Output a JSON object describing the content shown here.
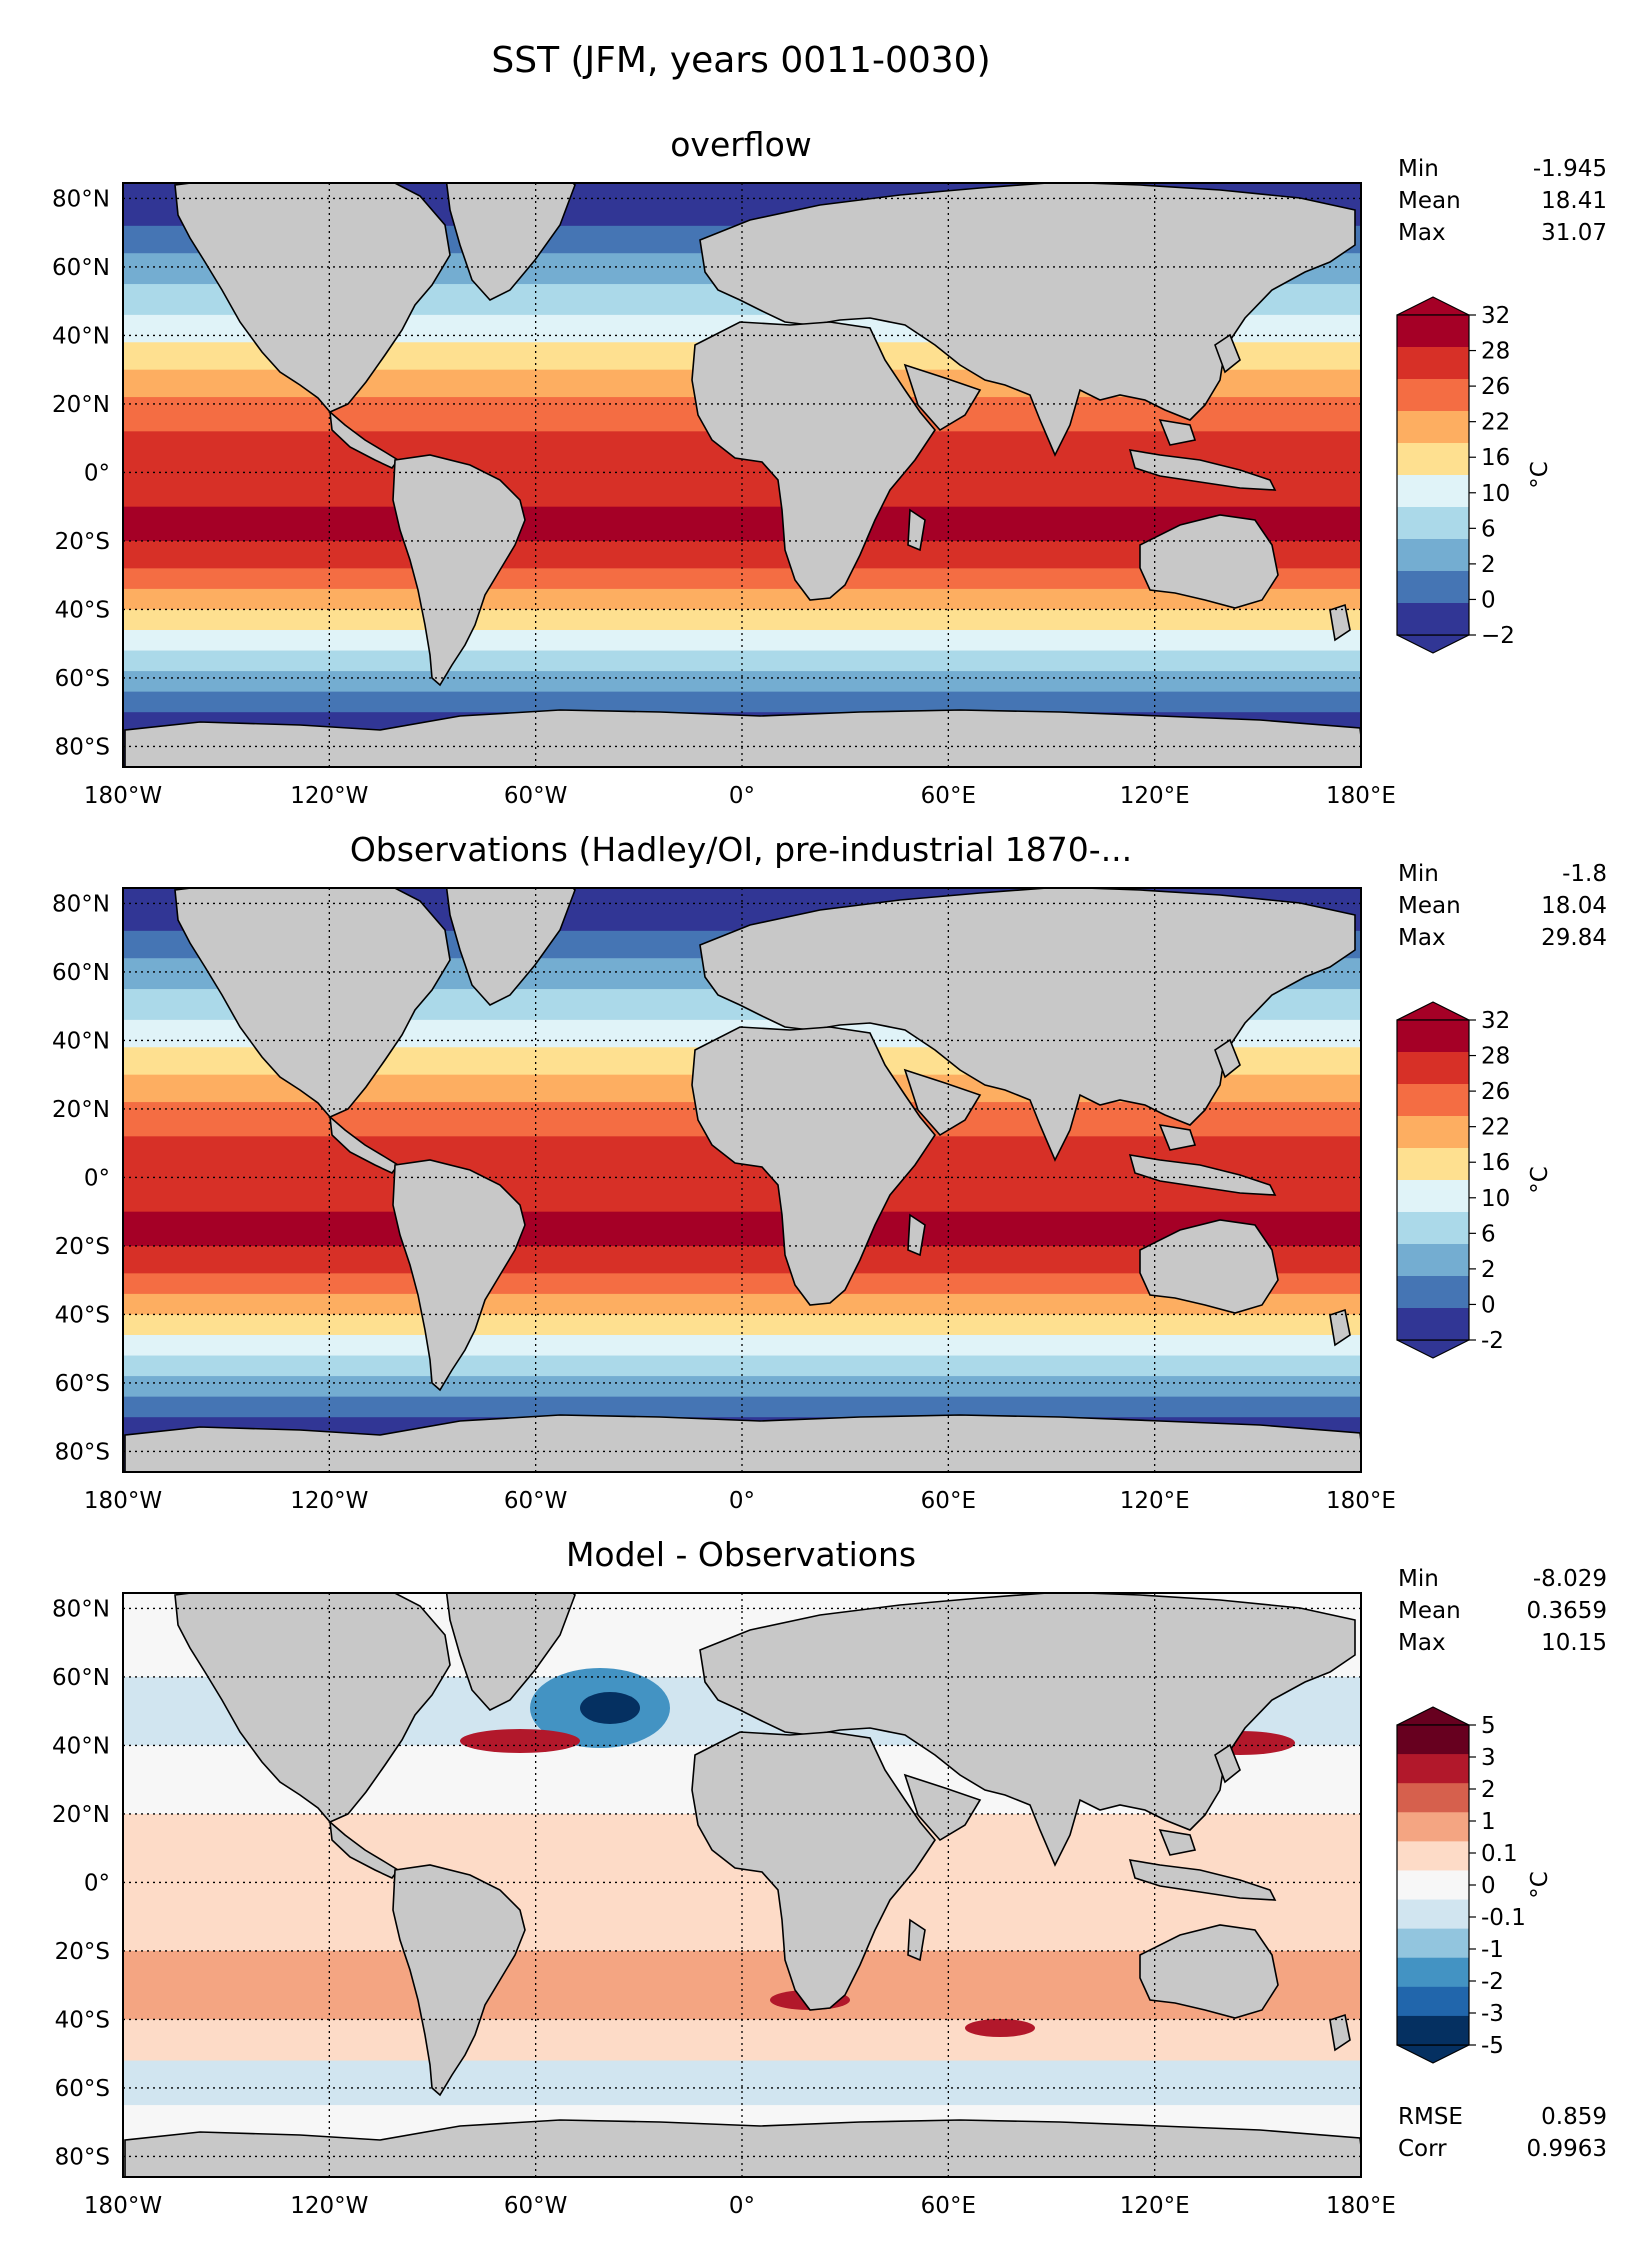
{
  "figure": {
    "title": "SST (JFM, years 0011-0030)"
  },
  "lon_ticks": [
    "180°W",
    "120°W",
    "60°W",
    "0°",
    "60°E",
    "120°E",
    "180°E"
  ],
  "lat_ticks": [
    "80°N",
    "60°N",
    "40°N",
    "20°N",
    "0°",
    "20°S",
    "40°S",
    "60°S",
    "80°S"
  ],
  "panels": [
    {
      "id": "model",
      "title": "overflow",
      "stats": [
        {
          "label": "Min",
          "value": "-1.945"
        },
        {
          "label": "Mean",
          "value": "18.41"
        },
        {
          "label": "Max",
          "value": "31.07"
        }
      ],
      "colorbar": {
        "unit": "°C",
        "tick_labels": [
          "32",
          "28",
          "26",
          "22",
          "16",
          "10",
          "6",
          "2",
          "0",
          "−2"
        ],
        "colors": [
          "#a50026",
          "#d73027",
          "#f46d43",
          "#fdae61",
          "#fee090",
          "#e0f3f8",
          "#abd9e9",
          "#74add1",
          "#4575b4",
          "#313695"
        ]
      }
    },
    {
      "id": "obs",
      "title": "Observations (Hadley/OI, pre-industrial 1870-...",
      "stats": [
        {
          "label": "Min",
          "value": "-1.8"
        },
        {
          "label": "Mean",
          "value": "18.04"
        },
        {
          "label": "Max",
          "value": "29.84"
        }
      ],
      "colorbar": {
        "unit": "°C",
        "tick_labels": [
          "32",
          "28",
          "26",
          "22",
          "16",
          "10",
          "6",
          "2",
          "0",
          "-2"
        ],
        "colors": [
          "#a50026",
          "#d73027",
          "#f46d43",
          "#fdae61",
          "#fee090",
          "#e0f3f8",
          "#abd9e9",
          "#74add1",
          "#4575b4",
          "#313695"
        ]
      }
    },
    {
      "id": "diff",
      "title": "Model - Observations",
      "stats": [
        {
          "label": "Min",
          "value": "-8.029"
        },
        {
          "label": "Mean",
          "value": "0.3659"
        },
        {
          "label": "Max",
          "value": "10.15"
        }
      ],
      "extra_stats": [
        {
          "label": "RMSE",
          "value": "0.859"
        },
        {
          "label": "Corr",
          "value": "0.9963"
        }
      ],
      "colorbar": {
        "unit": "°C",
        "tick_labels": [
          "5",
          "3",
          "2",
          "1",
          "0.1",
          "0",
          "-0.1",
          "-1",
          "-2",
          "-3",
          "-5"
        ],
        "colors": [
          "#67001f",
          "#b2182b",
          "#d6604d",
          "#f4a582",
          "#fddbc7",
          "#f7f7f7",
          "#d1e5f0",
          "#92c5de",
          "#4393c3",
          "#2166ac",
          "#053061"
        ]
      }
    }
  ]
}
